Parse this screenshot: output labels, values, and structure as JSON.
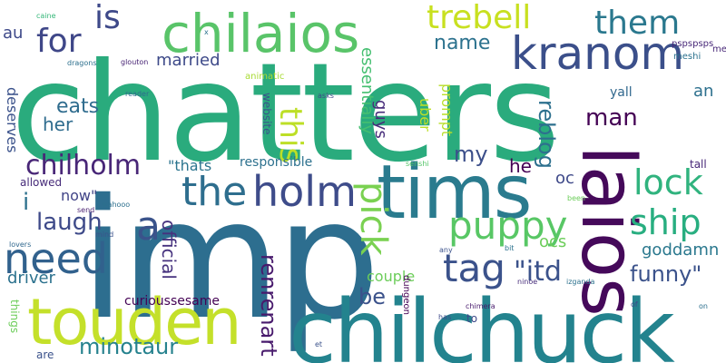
{
  "words": [
    {
      "id": "chatters",
      "text": "chatters",
      "color": "#2aab7d"
    },
    {
      "id": "imp",
      "text": "imp",
      "color": "#2d6e8f"
    },
    {
      "id": "chilchuck",
      "text": "chilchuck",
      "color": "#23838e"
    },
    {
      "id": "tims",
      "text": "tims",
      "color": "#2a7b8e"
    },
    {
      "id": "laios",
      "text": "laios",
      "color": "#45095a"
    },
    {
      "id": "touden",
      "text": "touden",
      "color": "#c4e02a"
    },
    {
      "id": "chilaios",
      "text": "chilaios",
      "color": "#59c469"
    },
    {
      "id": "kranom",
      "text": "kranom",
      "color": "#3b4f8a"
    },
    {
      "id": "holm",
      "text": "holm",
      "color": "#3e4c8a"
    },
    {
      "id": "the",
      "text": "the",
      "color": "#2e6e8e"
    },
    {
      "id": "need",
      "text": "need",
      "color": "#31618d"
    },
    {
      "id": "puppy",
      "text": "puppy",
      "color": "#58c765"
    },
    {
      "id": "tag",
      "text": "tag",
      "color": "#3b528b"
    },
    {
      "id": "pick",
      "text": "pick",
      "color": "#7ad151"
    },
    {
      "id": "ship",
      "text": "ship",
      "color": "#28ae80"
    },
    {
      "id": "lock",
      "text": "lock",
      "color": "#30b37e"
    },
    {
      "id": "trebell",
      "text": "trebell",
      "color": "#c8e020"
    },
    {
      "id": "is",
      "text": "is",
      "color": "#3e4989"
    },
    {
      "id": "for",
      "text": "for",
      "color": "#3f4788"
    },
    {
      "id": "them",
      "text": "them",
      "color": "#2a788e"
    },
    {
      "id": "chilholm",
      "text": "chilholm",
      "color": "#482677"
    },
    {
      "id": "this",
      "text": "this",
      "color": "#bddf26"
    },
    {
      "id": "a",
      "text": "a",
      "color": "#3a538b"
    },
    {
      "id": "name",
      "text": "name",
      "color": "#2c728e"
    },
    {
      "id": "reblog",
      "text": "reblog",
      "color": "#2d708e"
    },
    {
      "id": "man",
      "text": "man",
      "color": "#440154"
    },
    {
      "id": "itd",
      "text": "\"itd",
      "color": "#3b528b"
    },
    {
      "id": "funny",
      "text": "funny\"",
      "color": "#3b528b"
    },
    {
      "id": "laugh",
      "text": "laugh",
      "color": "#3e4a89"
    },
    {
      "id": "renrenart",
      "text": "renrenart",
      "color": "#481a6c"
    },
    {
      "id": "minotaur",
      "text": "minotaur",
      "color": "#26828e"
    },
    {
      "id": "married",
      "text": "married",
      "color": "#3e4a89"
    },
    {
      "id": "eats",
      "text": "eats",
      "color": "#2f6c8e"
    },
    {
      "id": "her",
      "text": "her",
      "color": "#2f6c8e"
    },
    {
      "id": "essentially",
      "text": "essentially",
      "color": "#44bf70"
    },
    {
      "id": "thats",
      "text": "\"thats",
      "color": "#2b748e"
    },
    {
      "id": "responsible",
      "text": "responsible",
      "color": "#2d718e"
    },
    {
      "id": "official",
      "text": "official",
      "color": "#46327e"
    },
    {
      "id": "my",
      "text": "my",
      "color": "#3c4f8a"
    },
    {
      "id": "he",
      "text": "he",
      "color": "#440154"
    },
    {
      "id": "oc",
      "text": "oc",
      "color": "#3e4989"
    },
    {
      "id": "ocs",
      "text": "ocs",
      "color": "#6ccd5a"
    },
    {
      "id": "goddamn",
      "text": "goddamn",
      "color": "#2a788e"
    },
    {
      "id": "guys",
      "text": "guys",
      "color": "#472d7b"
    },
    {
      "id": "uber",
      "text": "uber",
      "color": "#bddf26"
    },
    {
      "id": "prompt",
      "text": "prompt",
      "color": "#b8de29"
    },
    {
      "id": "yall",
      "text": "yall",
      "color": "#31688e"
    },
    {
      "id": "an",
      "text": "an",
      "color": "#2d708e"
    },
    {
      "id": "be",
      "text": "be",
      "color": "#3b528b"
    },
    {
      "id": "couple",
      "text": "couple",
      "color": "#6ccd5a"
    },
    {
      "id": "driver",
      "text": "driver",
      "color": "#2c728e"
    },
    {
      "id": "curioussesame",
      "text": "curioussesame",
      "color": "#440154"
    },
    {
      "id": "deserves",
      "text": "deserves",
      "color": "#3b528b"
    },
    {
      "id": "now",
      "text": "now\"",
      "color": "#414487"
    },
    {
      "id": "i",
      "text": "i",
      "color": "#2d718e"
    },
    {
      "id": "au",
      "text": "au",
      "color": "#3e4989"
    },
    {
      "id": "website",
      "text": "website",
      "color": "#3b528b"
    },
    {
      "id": "allowed",
      "text": "allowed",
      "color": "#472c7a"
    },
    {
      "id": "tall",
      "text": "tall",
      "color": "#482878"
    },
    {
      "id": "things",
      "text": "things",
      "color": "#6ccd5a"
    },
    {
      "id": "are",
      "text": "are",
      "color": "#3b528b"
    },
    {
      "id": "to",
      "text": "to",
      "color": "#3e4989"
    },
    {
      "id": "dungeon",
      "text": "dungeon",
      "color": "#440154"
    },
    {
      "id": "animatic",
      "text": "animatic",
      "color": "#a8db34"
    },
    {
      "id": "meshi",
      "text": "meshi",
      "color": "#2c728e"
    },
    {
      "id": "psps",
      "text": "pspspsps",
      "color": "#482878"
    },
    {
      "id": "me",
      "text": "me",
      "color": "#482878"
    },
    {
      "id": "x",
      "text": "x",
      "color": "#2c728e"
    },
    {
      "id": "caine",
      "text": "caine",
      "color": "#35b779"
    },
    {
      "id": "dragons",
      "text": "dragons",
      "color": "#2d708e"
    },
    {
      "id": "glouton",
      "text": "glouton",
      "color": "#482475"
    },
    {
      "id": "reader",
      "text": "reader",
      "color": "#2f6b8e"
    },
    {
      "id": "asks",
      "text": "asks",
      "color": "#3e4989"
    },
    {
      "id": "senshi",
      "text": "senshi",
      "color": "#54c568"
    },
    {
      "id": "wahooo",
      "text": "wahooo",
      "color": "#2d708e"
    },
    {
      "id": "send",
      "text": "send",
      "color": "#481f70"
    },
    {
      "id": "mind",
      "text": "mind",
      "color": "#3b528b"
    },
    {
      "id": "been",
      "text": "been",
      "color": "#6ccd5a"
    },
    {
      "id": "lovers",
      "text": "lovers",
      "color": "#31688e"
    },
    {
      "id": "any",
      "text": "any",
      "color": "#3b528b"
    },
    {
      "id": "bit",
      "text": "bit",
      "color": "#2c728e"
    },
    {
      "id": "izganda",
      "text": "izganda",
      "color": "#2c728e"
    },
    {
      "id": "ninoe",
      "text": "ninoe",
      "color": "#472d7b"
    },
    {
      "id": "of",
      "text": "of",
      "color": "#3e4989"
    },
    {
      "id": "on",
      "text": "on",
      "color": "#2d708e"
    },
    {
      "id": "chimera",
      "text": "chimera",
      "color": "#481a6c"
    },
    {
      "id": "has",
      "text": "has",
      "color": "#3e4989"
    },
    {
      "id": "et",
      "text": "et",
      "color": "#3b528b"
    }
  ]
}
